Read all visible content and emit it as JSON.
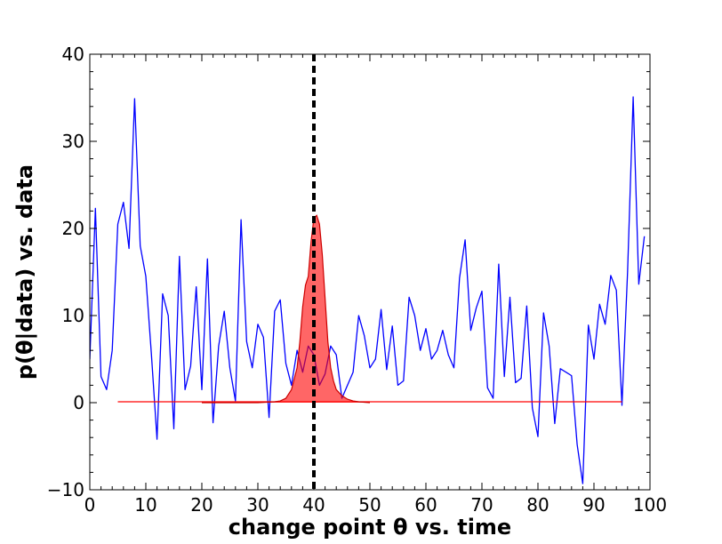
{
  "chart_data": {
    "type": "line",
    "xlabel": "change point θ vs. time",
    "ylabel": "p(θ|data) vs. data",
    "xlim": [
      0,
      100
    ],
    "ylim": [
      -10,
      40
    ],
    "xticks": [
      0,
      10,
      20,
      30,
      40,
      50,
      60,
      70,
      80,
      90,
      100
    ],
    "yticks": [
      -10,
      0,
      10,
      20,
      30,
      40
    ],
    "xtick_labels": [
      "0",
      "10",
      "20",
      "30",
      "40",
      "50",
      "60",
      "70",
      "80",
      "90",
      "100"
    ],
    "ytick_labels": [
      "−10",
      "0",
      "10",
      "20",
      "30",
      "40"
    ],
    "grid": false,
    "change_point_marker": {
      "x": 40,
      "style": "dashed",
      "color": "#000000"
    },
    "series": [
      {
        "kind": "line",
        "color": "#0000ff",
        "x": [
          0,
          1,
          2,
          3,
          4,
          5,
          6,
          7,
          8,
          9,
          10,
          11,
          12,
          13,
          14,
          15,
          16,
          17,
          18,
          19,
          20,
          21,
          22,
          23,
          24,
          25,
          26,
          27,
          28,
          29,
          30,
          31,
          32,
          33,
          34,
          35,
          36,
          37,
          38,
          39,
          40,
          41,
          42,
          43,
          44,
          45,
          46,
          47,
          48,
          49,
          50,
          51,
          52,
          53,
          54,
          55,
          56,
          57,
          58,
          59,
          60,
          61,
          62,
          63,
          64,
          65,
          66,
          67,
          68,
          69,
          70,
          71,
          72,
          73,
          74,
          75,
          76,
          77,
          78,
          79,
          80,
          81,
          82,
          83,
          84,
          85,
          86,
          87,
          88,
          89,
          90,
          91,
          92,
          93,
          94,
          95,
          96,
          97,
          98,
          99
        ],
        "y": [
          5,
          22.3,
          3,
          1.5,
          6,
          20.5,
          23,
          17.7,
          34.9,
          18,
          14.5,
          5.5,
          -4.2,
          12.5,
          10,
          -3,
          16.8,
          1.5,
          4.2,
          13.3,
          1.5,
          16.5,
          -2.3,
          6.5,
          10.5,
          4,
          0.2,
          21,
          7,
          4,
          9,
          7.5,
          -1.7,
          10.5,
          11.8,
          4.5,
          2,
          6,
          3.5,
          6.5,
          5.5,
          2,
          3.3,
          6.5,
          5.5,
          0.5,
          2,
          3.5,
          10,
          7.7,
          4,
          5,
          10.7,
          3.8,
          8.8,
          2,
          2.5,
          12.1,
          10,
          6,
          8.5,
          5,
          6,
          8.3,
          5.5,
          4,
          14.3,
          18.7,
          8.3,
          10.9,
          12.8,
          1.7,
          0.5,
          15.9,
          3,
          12.1,
          2.3,
          2.8,
          11.1,
          -0.6,
          -3.9,
          10.3,
          6.5,
          -2.4,
          3.9,
          3.5,
          3.1,
          -4.8,
          -9.3,
          8.9,
          5,
          11.3,
          9,
          14.6,
          12.9,
          -0.3,
          15,
          35.1,
          13.6,
          19.1
        ]
      },
      {
        "kind": "line",
        "color": "#ff0000",
        "x": [
          5,
          95
        ],
        "y": [
          0.1,
          0.1
        ]
      },
      {
        "kind": "area",
        "fill": "#ff0000",
        "fill_opacity": 0.6,
        "stroke": "#cc0000",
        "x": [
          20,
          30,
          33,
          34,
          35,
          36,
          37,
          37.5,
          38,
          38.5,
          39,
          39.5,
          40,
          40.5,
          41,
          41.5,
          42,
          42.5,
          43,
          43.5,
          44,
          45,
          46,
          47,
          48,
          50
        ],
        "y": [
          0,
          0,
          0.1,
          0.2,
          0.5,
          1.5,
          4,
          7,
          11,
          13.5,
          14.5,
          18.5,
          21.2,
          21.5,
          20.5,
          17,
          12,
          7,
          4,
          2.5,
          1.5,
          0.8,
          0.4,
          0.2,
          0.1,
          0
        ]
      }
    ]
  }
}
